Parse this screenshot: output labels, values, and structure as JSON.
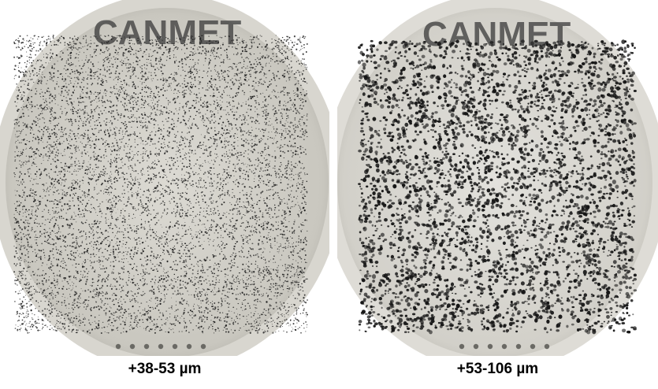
{
  "panels": [
    {
      "id": "left",
      "plate_label": "CANMET",
      "caption": "+38-53 µm",
      "particle_density": "fine",
      "particle_color": "#1f1f1f"
    },
    {
      "id": "right",
      "plate_label": "CANMET",
      "caption": "+53-106 µm",
      "particle_density": "coarse",
      "particle_color": "#161616"
    }
  ],
  "colors": {
    "plate_background": "#cfcdc6",
    "plate_rim": "#e4e3de",
    "label_ink": "#3a3a3a"
  }
}
